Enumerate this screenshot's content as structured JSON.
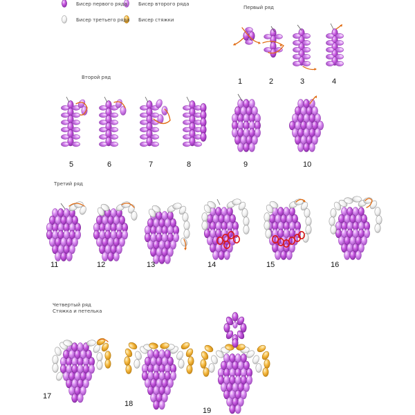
{
  "legend": [
    {
      "text": "Бисер первого ряда",
      "bead": "first"
    },
    {
      "text": "Бисер второго ряда",
      "bead": "second"
    },
    {
      "text": "Бисер третьего ряда",
      "bead": "third"
    },
    {
      "text": "Бисер стяжки",
      "bead": "tie"
    }
  ],
  "sections": {
    "row1": "Первый ряд",
    "row2": "Второй ряд",
    "row3": "Третий ряд",
    "row4": "Четвертый ряд",
    "row4_sub": "Стяжка и петелька"
  },
  "steps": [
    "1",
    "2",
    "3",
    "4",
    "5",
    "6",
    "7",
    "8",
    "9",
    "10",
    "11",
    "12",
    "13",
    "14",
    "15",
    "16",
    "17",
    "18",
    "19"
  ],
  "colors": {
    "bead_first": "#c85be0",
    "bead_second": "#d67ae8",
    "bead_third": "#f2f2f2",
    "bead_tie": "#f5b942",
    "thread": "#e06a10",
    "highlight": "#d81818"
  }
}
